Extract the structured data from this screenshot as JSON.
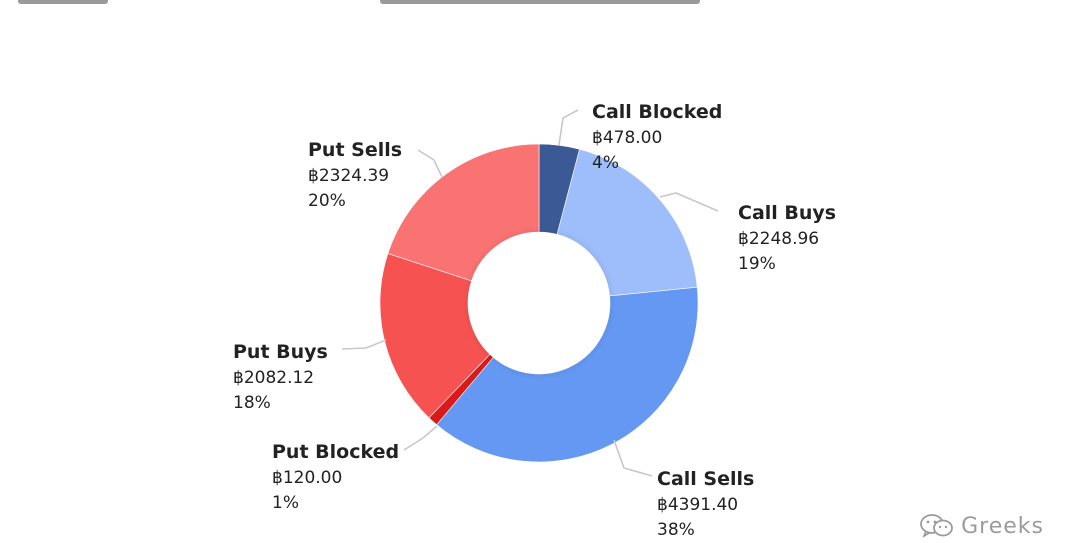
{
  "chart_data": {
    "type": "pie",
    "style": "donut",
    "title": "",
    "colors": {
      "Call Blocked": "#3b5a95",
      "Call Buys": "#9dbdfb",
      "Call Sells": "#6498f2",
      "Put Blocked": "#d81a1a",
      "Put Buys": "#f75252",
      "Put Sells": "#fa7373"
    },
    "slices": [
      {
        "label": "Call Blocked",
        "value": 478.0,
        "value_text": "฿478.00",
        "percent_text": "4%"
      },
      {
        "label": "Call Buys",
        "value": 2248.96,
        "value_text": "฿2248.96",
        "percent_text": "19%"
      },
      {
        "label": "Call Sells",
        "value": 4391.4,
        "value_text": "฿4391.40",
        "percent_text": "38%"
      },
      {
        "label": "Put Blocked",
        "value": 120.0,
        "value_text": "฿120.00",
        "percent_text": "1%"
      },
      {
        "label": "Put Buys",
        "value": 2082.12,
        "value_text": "฿2082.12",
        "percent_text": "18%"
      },
      {
        "label": "Put Sells",
        "value": 2324.39,
        "value_text": "฿2324.39",
        "percent_text": "20%"
      }
    ]
  },
  "watermark": {
    "text": "Greeks",
    "icon": "wechat-icon"
  }
}
